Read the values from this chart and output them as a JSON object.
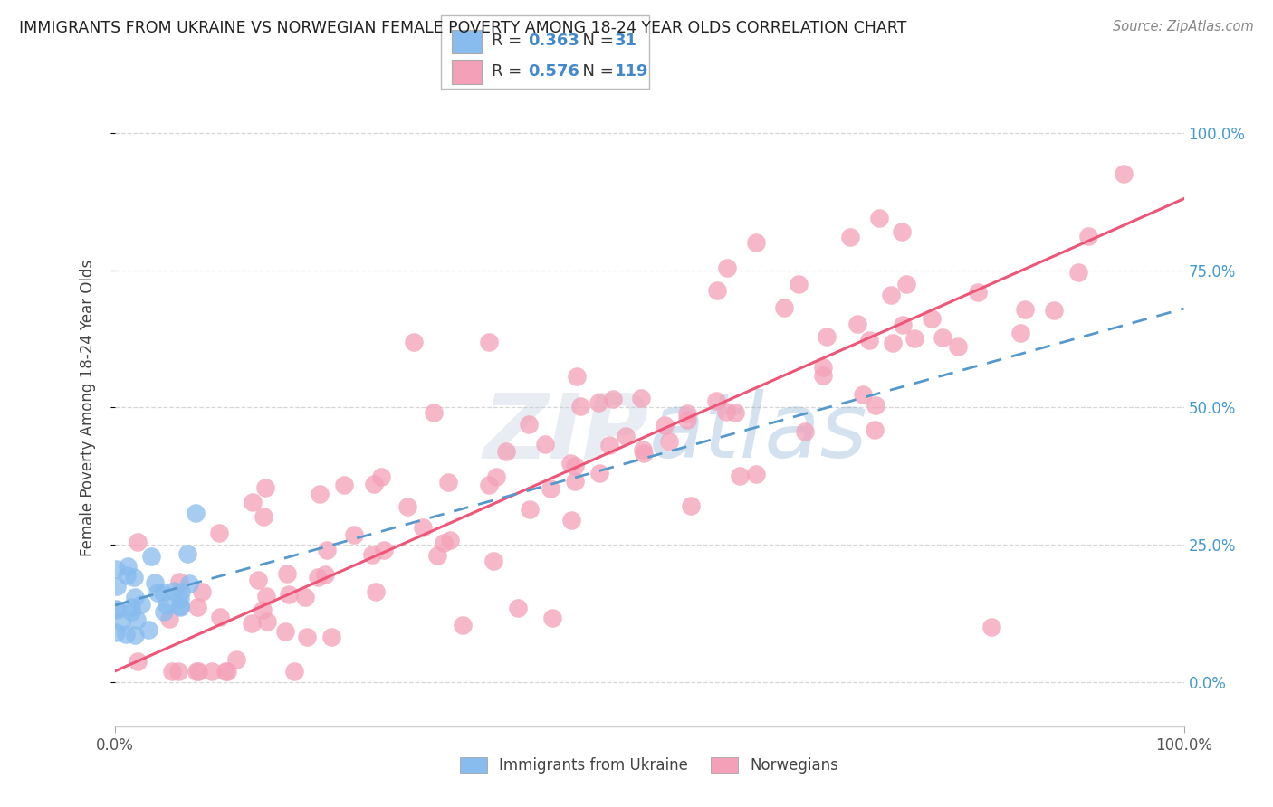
{
  "title": "IMMIGRANTS FROM UKRAINE VS NORWEGIAN FEMALE POVERTY AMONG 18-24 YEAR OLDS CORRELATION CHART",
  "source": "Source: ZipAtlas.com",
  "ylabel": "Female Poverty Among 18-24 Year Olds",
  "ytick_labels": [
    "0.0%",
    "25.0%",
    "50.0%",
    "75.0%",
    "100.0%"
  ],
  "ytick_values": [
    0.0,
    0.25,
    0.5,
    0.75,
    1.0
  ],
  "ukraine_color": "#88BBEE",
  "norwegian_color": "#F4A0B8",
  "ukraine_R": 0.363,
  "ukraine_N": 31,
  "norwegian_R": 0.576,
  "norwegian_N": 119,
  "ukraine_line_color": "#5599CC",
  "norwegian_line_color": "#EE5577",
  "watermark_text": "ZIPatlas",
  "watermark_color": "#AABBDD",
  "background_color": "#FFFFFF",
  "grid_color": "#CCCCCC",
  "legend_label_ukraine": "Immigrants from Ukraine",
  "legend_label_norwegian": "Norwegians",
  "legend_R_color": "#4488CC",
  "legend_text_color": "#333333"
}
